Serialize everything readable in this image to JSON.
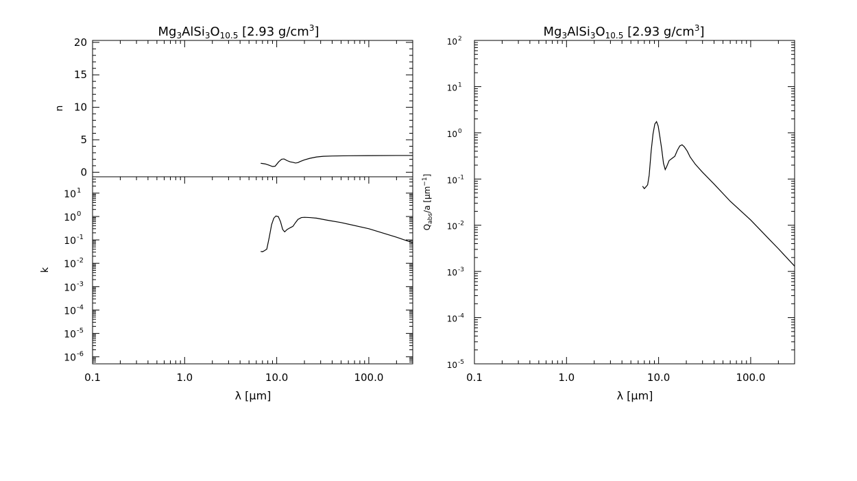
{
  "chart_data": [
    {
      "type": "line",
      "title_main": "Mg",
      "title_sub_1": "3",
      "title_mid": "AlSi",
      "title_sub_2": "3",
      "title_mid2": "O",
      "title_sub_3": "10.5",
      "title_tail": " [2.93 g/cm",
      "title_sup": "3",
      "title_end": "]",
      "xlabel": "λ [μm]",
      "xscale": "log",
      "xlim": [
        0.1,
        300
      ],
      "xticklabels": [
        "0.1",
        "1.0",
        "10.0",
        "100.0"
      ],
      "xtickvalues": [
        0.1,
        1,
        10,
        100
      ],
      "panels": [
        {
          "name": "n-panel",
          "ylabel": "n",
          "yscale": "linear",
          "ylim": [
            -0.7,
            20.3
          ],
          "yticklabels": [
            "0",
            "5",
            "10",
            "15",
            "20"
          ],
          "ytickvalues": [
            0,
            5,
            10,
            15,
            20
          ],
          "x": [
            6.7,
            7.5,
            8.2,
            9.0,
            9.6,
            10.5,
            11.3,
            12.0,
            13.0,
            14.0,
            15.0,
            16.0,
            17.0,
            18.0,
            20.0,
            23.0,
            27.0,
            32.0,
            40.0,
            60.0,
            100.0,
            200.0,
            300.0
          ],
          "y": [
            1.38,
            1.28,
            1.1,
            0.88,
            0.92,
            1.6,
            2.0,
            2.05,
            1.78,
            1.6,
            1.52,
            1.42,
            1.48,
            1.65,
            1.9,
            2.15,
            2.35,
            2.45,
            2.5,
            2.54,
            2.56,
            2.58,
            2.58
          ]
        },
        {
          "name": "k-panel",
          "ylabel": "k",
          "yscale": "log",
          "ylim": [
            5e-07,
            50
          ],
          "yticklabels": [
            "10",
            "10",
            "10",
            "10",
            "10",
            "10",
            "10",
            "10"
          ],
          "ytickexps": [
            "1",
            "0",
            "-1",
            "-2",
            "-3",
            "-4",
            "-5",
            "-6"
          ],
          "ytickvalues": [
            10,
            1,
            0.1,
            0.01,
            0.001,
            0.0001,
            1e-05,
            1e-06
          ],
          "x": [
            6.7,
            7.0,
            7.3,
            7.8,
            8.3,
            8.8,
            9.3,
            9.8,
            10.4,
            11.0,
            11.6,
            12.2,
            13.0,
            14.0,
            15.0,
            16.0,
            17.0,
            18.5,
            20.0,
            23.0,
            27.0,
            35.0,
            50.0,
            100.0,
            200.0,
            300.0
          ],
          "y": [
            0.032,
            0.031,
            0.034,
            0.04,
            0.13,
            0.45,
            0.85,
            1.05,
            1.0,
            0.6,
            0.28,
            0.22,
            0.28,
            0.33,
            0.38,
            0.55,
            0.75,
            0.9,
            0.92,
            0.9,
            0.85,
            0.7,
            0.55,
            0.3,
            0.13,
            0.075
          ]
        }
      ]
    },
    {
      "type": "line",
      "title_main": "Mg",
      "title_sub_1": "3",
      "title_mid": "AlSi",
      "title_sub_2": "3",
      "title_mid2": "O",
      "title_sub_3": "10.5",
      "title_tail": " [2.93 g/cm",
      "title_sup": "3",
      "title_end": "]",
      "xlabel": "λ [μm]",
      "xscale": "log",
      "xlim": [
        0.1,
        300
      ],
      "xticklabels": [
        "0.1",
        "1.0",
        "10.0",
        "100.0"
      ],
      "xtickvalues": [
        0.1,
        1,
        10,
        100
      ],
      "ylabel_main": "Q",
      "ylabel_sub": "abs",
      "ylabel_mid": "/a [μm",
      "ylabel_sup": "−1",
      "ylabel_end": "]",
      "yscale": "log",
      "ylim": [
        1e-05,
        100
      ],
      "yticklabels": [
        "10",
        "10",
        "10",
        "10",
        "10",
        "10",
        "10",
        "10"
      ],
      "ytickexps": [
        "2",
        "1",
        "0",
        "-1",
        "-2",
        "-3",
        "-4",
        "-5"
      ],
      "ytickvalues": [
        100,
        10,
        1,
        0.1,
        0.01,
        0.001,
        0.0001,
        1e-05
      ],
      "x": [
        6.7,
        7.0,
        7.3,
        7.6,
        7.9,
        8.3,
        8.7,
        9.1,
        9.5,
        9.9,
        10.3,
        10.8,
        11.3,
        11.8,
        12.3,
        13.0,
        14.0,
        15.0,
        16.0,
        17.0,
        18.0,
        19.0,
        20.5,
        22.0,
        25.0,
        30.0,
        40.0,
        60.0,
        100.0,
        150.0,
        200.0,
        300.0
      ],
      "y": [
        0.07,
        0.062,
        0.068,
        0.075,
        0.12,
        0.4,
        0.95,
        1.55,
        1.75,
        1.4,
        0.85,
        0.45,
        0.22,
        0.16,
        0.19,
        0.25,
        0.28,
        0.31,
        0.42,
        0.52,
        0.55,
        0.5,
        0.4,
        0.3,
        0.21,
        0.14,
        0.078,
        0.033,
        0.013,
        0.0056,
        0.0031,
        0.0013
      ]
    }
  ]
}
